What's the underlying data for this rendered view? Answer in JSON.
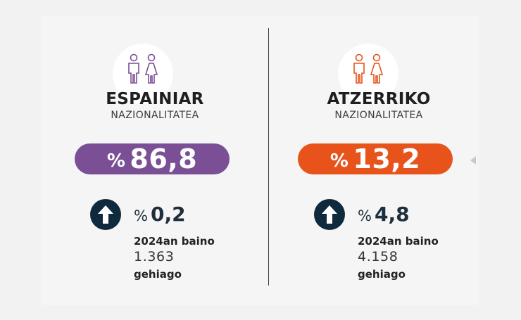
{
  "left": {
    "title": "ESPAINIAR",
    "subtitle": "NAZIONALITATEA",
    "pct_symbol": "%",
    "value": "86,8",
    "change_symbol": "%",
    "change": "0,2",
    "note": "2024an baino",
    "count": "1.363",
    "more": "gehiago",
    "accent": "#7b4f95",
    "icon": "people-icon"
  },
  "right": {
    "title": "ATZERRIKO",
    "subtitle": "NAZIONALITATEA",
    "pct_symbol": "%",
    "value": "13,2",
    "change_symbol": "%",
    "change": "4,8",
    "note": "2024an baino",
    "count": "4.158",
    "more": "gehiago",
    "accent": "#e8531c",
    "icon": "people-icon"
  },
  "colors": {
    "arrow_bg": "#102a3d",
    "text_dark": "#1d2e3d"
  }
}
